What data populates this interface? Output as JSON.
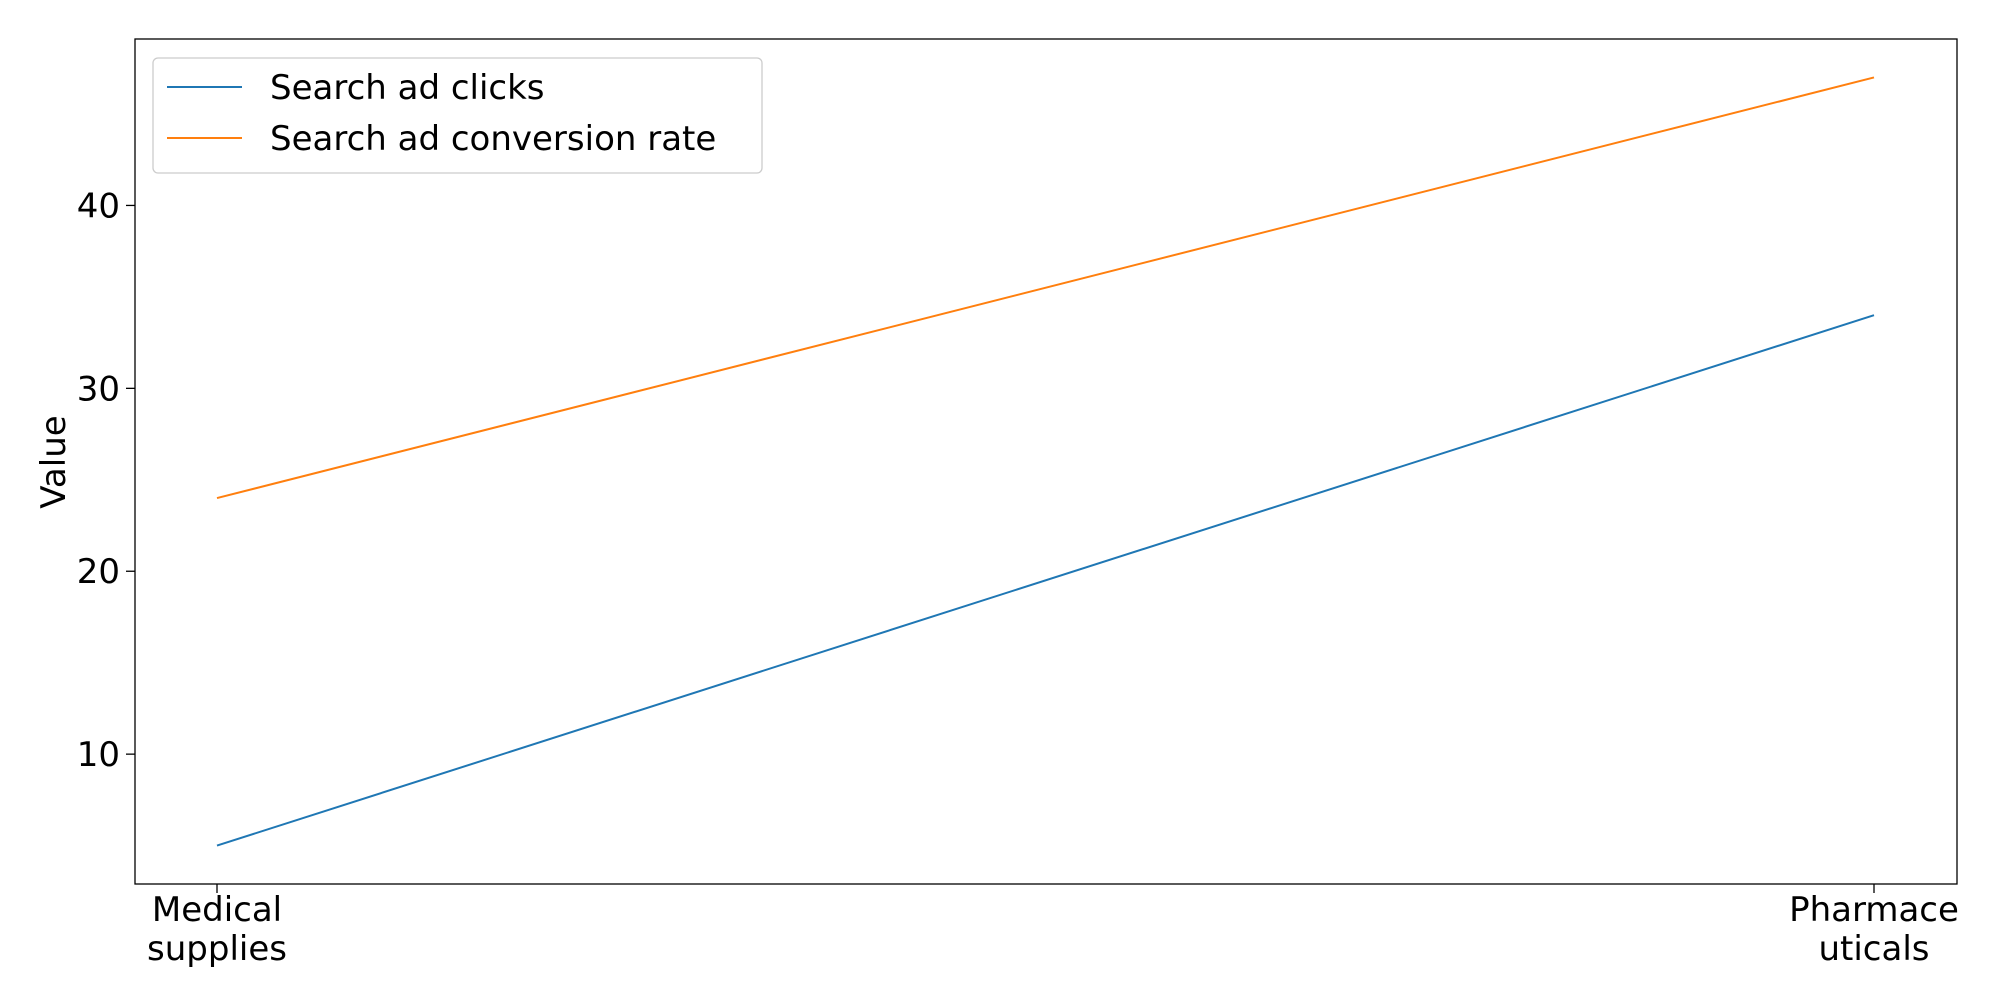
{
  "chart_data": {
    "type": "line",
    "title": "",
    "xlabel": "",
    "ylabel": "Value",
    "categories": [
      "Medical supplies",
      "Pharmaceuticals"
    ],
    "category_labels": [
      [
        "Medical",
        "supplies"
      ],
      [
        "Pharmace",
        "uticals"
      ]
    ],
    "yticks": [
      10,
      20,
      30,
      40
    ],
    "ylim": [
      2.9,
      49.1
    ],
    "grid": false,
    "legend_position": "top-left",
    "series": [
      {
        "name": "Search ad clicks",
        "values": [
          5,
          34
        ],
        "color": "#1f77b4"
      },
      {
        "name": "Search ad conversion rate",
        "values": [
          24,
          47
        ],
        "color": "#ff7f0e"
      }
    ]
  }
}
